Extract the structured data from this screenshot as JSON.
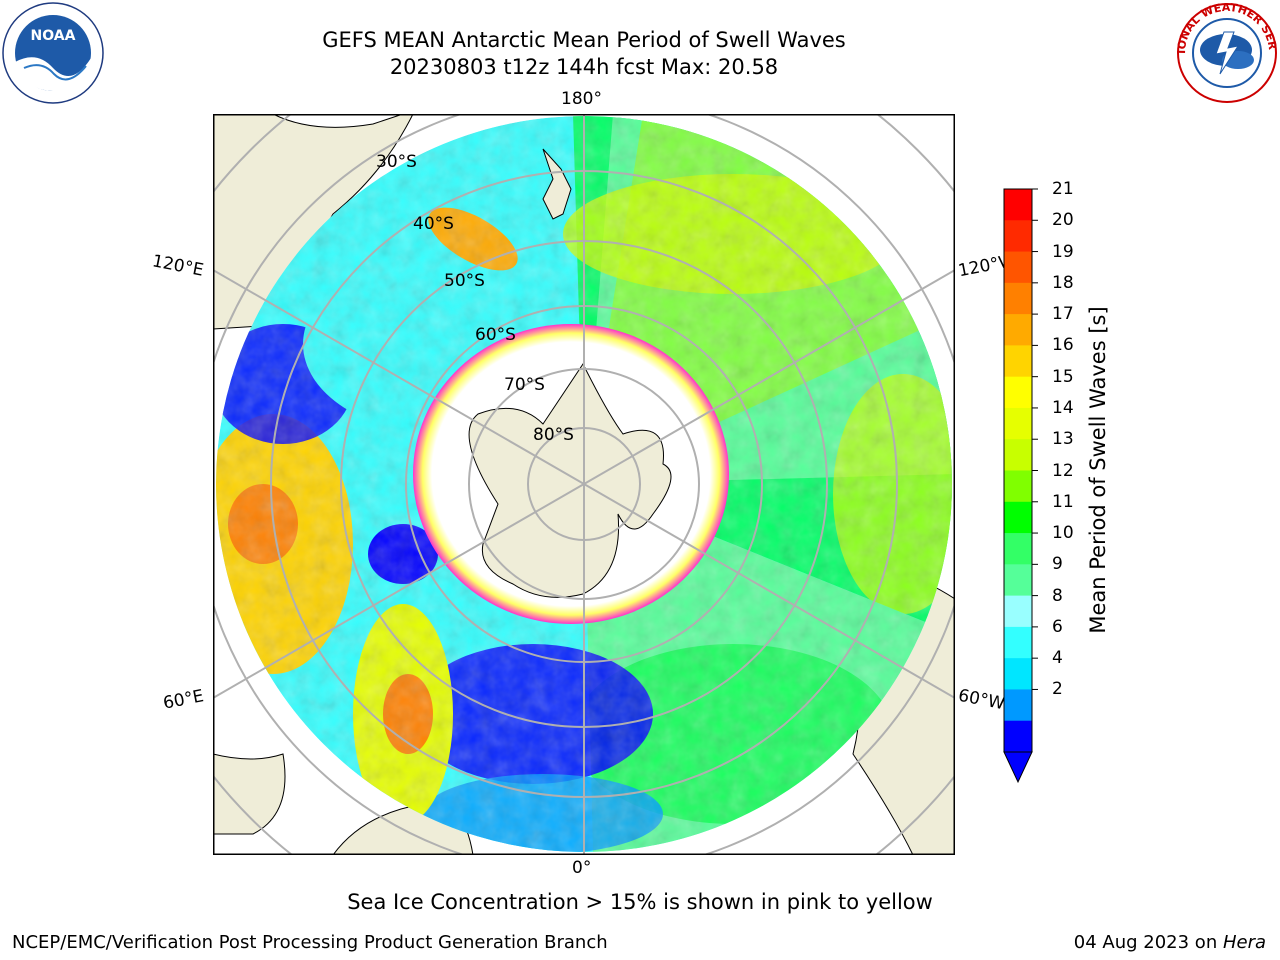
{
  "title": {
    "line1": "GEFS MEAN Antarctic Mean Period of Swell Waves",
    "line2": "20230803 t12z 144h fcst   Max: 20.58"
  },
  "map": {
    "longitude_labels": {
      "top": "180°",
      "bottom": "0°",
      "upper_left": "120°E",
      "lower_left": "60°E",
      "upper_right": "120°W",
      "lower_right": "60°W"
    },
    "latitude_labels": [
      "30°S",
      "40°S",
      "50°S",
      "60°S",
      "70°S",
      "80°S"
    ],
    "colors": {
      "land": "#efedd8",
      "ocean_frame": "#ffffff",
      "grid": "#b0b0b0",
      "ice": "#ff33cc"
    }
  },
  "colorbar": {
    "title": "Mean Period of Swell Waves [s]",
    "ticks": [
      "21",
      "20",
      "19",
      "18",
      "17",
      "16",
      "15",
      "14",
      "13",
      "12",
      "11",
      "10",
      "9",
      "8",
      "6",
      "4",
      "2"
    ],
    "colors_top_to_bottom": [
      "#ff0000",
      "#ff2a00",
      "#ff5500",
      "#ff8000",
      "#ffaa00",
      "#ffd400",
      "#ffff00",
      "#e6ff00",
      "#c8ff00",
      "#80ff00",
      "#00ff00",
      "#33ff66",
      "#55ff99",
      "#99ffff",
      "#33ffff",
      "#00e6ff",
      "#0099ff",
      "#0000ff"
    ],
    "extend_color": "#0000ff"
  },
  "footnote": "Sea Ice Concentration > 15% is shown in pink to yellow",
  "footer": {
    "left": "NCEP/EMC/Verification Post Processing Product Generation Branch",
    "right_prefix": "04 Aug 2023 on ",
    "right_machine": "Hera"
  },
  "logos": {
    "left_text": "NOAA",
    "left_ring": "NATIONAL OCEANIC AND ATMOSPHERIC ADMINISTRATION · U.S. DEPARTMENT OF COMMERCE",
    "right_ring": "NATIONAL WEATHER SERVICE"
  }
}
